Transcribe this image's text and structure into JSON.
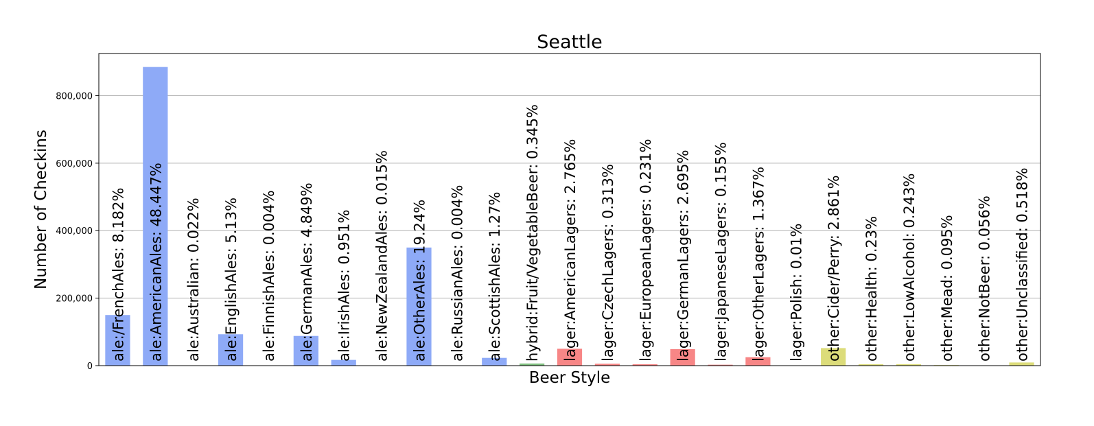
{
  "chart_data": {
    "type": "bar",
    "title": "Seattle",
    "xlabel": "Beer Style",
    "ylabel": "Number of Checkins",
    "ylim": [
      0,
      925000
    ],
    "yticks": [
      0,
      200000,
      400000,
      600000,
      800000
    ],
    "ytick_labels": [
      "0",
      "200,000",
      "400,000",
      "600,000",
      "800,000"
    ],
    "grid": "y",
    "legend": "none",
    "colors": {
      "ale": "#8eaaf7",
      "hybrid": "#7fbf7f",
      "lager": "#f78686",
      "other": "#dcdc7a"
    },
    "bars": [
      {
        "label": "ale:/FrenchAles: 8.182%",
        "group": "ale",
        "value": 150000
      },
      {
        "label": "ale:AmericanAles: 48.447%",
        "group": "ale",
        "value": 885000
      },
      {
        "label": "ale:Australian: 0.022%",
        "group": "ale",
        "value": 400
      },
      {
        "label": "ale:EnglishAles: 5.13%",
        "group": "ale",
        "value": 93000
      },
      {
        "label": "ale:FinnishAles: 0.004%",
        "group": "ale",
        "value": 80
      },
      {
        "label": "ale:GermanAles: 4.849%",
        "group": "ale",
        "value": 88000
      },
      {
        "label": "ale:IrishAles: 0.951%",
        "group": "ale",
        "value": 17000
      },
      {
        "label": "ale:NewZealandAles: 0.015%",
        "group": "ale",
        "value": 280
      },
      {
        "label": "ale:OtherAles: 19.24%",
        "group": "ale",
        "value": 350000
      },
      {
        "label": "ale:RussianAles: 0.004%",
        "group": "ale",
        "value": 80
      },
      {
        "label": "ale:ScottishAles: 1.27%",
        "group": "ale",
        "value": 23000
      },
      {
        "label": "hybrid:Fruit/VegetableBeer: 0.345%",
        "group": "hybrid",
        "value": 6300
      },
      {
        "label": "lager:AmericanLagers: 2.765%",
        "group": "lager",
        "value": 50000
      },
      {
        "label": "lager:CzechLagers: 0.313%",
        "group": "lager",
        "value": 5700
      },
      {
        "label": "lager:EuropeanLagers: 0.231%",
        "group": "lager",
        "value": 4200
      },
      {
        "label": "lager:GermanLagers: 2.695%",
        "group": "lager",
        "value": 49000
      },
      {
        "label": "lager:JapaneseLagers: 0.155%",
        "group": "lager",
        "value": 2800
      },
      {
        "label": "lager:OtherLagers: 1.367%",
        "group": "lager",
        "value": 25000
      },
      {
        "label": "lager:Polish: 0.01%",
        "group": "lager",
        "value": 180
      },
      {
        "label": "other:Cider/Perry: 2.861%",
        "group": "other",
        "value": 52000
      },
      {
        "label": "other:Health: 0.23%",
        "group": "other",
        "value": 4200
      },
      {
        "label": "other:LowAlcohol: 0.243%",
        "group": "other",
        "value": 4400
      },
      {
        "label": "other:Mead: 0.095%",
        "group": "other",
        "value": 1700
      },
      {
        "label": "other:NotBeer: 0.056%",
        "group": "other",
        "value": 1000
      },
      {
        "label": "other:Unclassified: 0.518%",
        "group": "other",
        "value": 9400
      }
    ]
  }
}
